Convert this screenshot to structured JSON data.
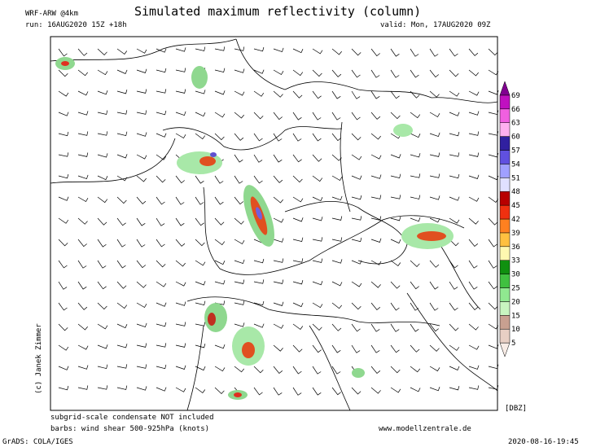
{
  "header": {
    "model": "WRF-ARW @4km",
    "title": "Simulated maximum reflectivity (column)",
    "run": "run: 16AUG2020 15Z +18h",
    "valid": "valid: Mon, 17AUG2020 09Z"
  },
  "colorbar": {
    "unit": "[DBZ]",
    "levels": [
      5,
      10,
      15,
      20,
      25,
      30,
      33,
      36,
      39,
      42,
      45,
      48,
      51,
      54,
      57,
      60,
      63,
      66,
      69
    ],
    "colors": [
      "#f8ece6",
      "#e8cfc4",
      "#c8a090",
      "#c8f5c0",
      "#90e890",
      "#40c040",
      "#109010",
      "#fff8b0",
      "#ffc040",
      "#ff8020",
      "#f03010",
      "#b80000",
      "#e0e0ff",
      "#a0a0ff",
      "#6050e0",
      "#3020a0",
      "#ffb0f0",
      "#f060e0",
      "#c010c0",
      "#800090"
    ]
  },
  "footer": {
    "copyright": "(c) Janek Zimmer",
    "note": "subgrid-scale condensate NOT included",
    "barbs": "barbs: wind shear 500-925hPa (knots)",
    "website": "www.modellzentrale.de",
    "software": "GrADS: COLA/IGES",
    "timestamp": "2020-08-16-19:45"
  }
}
